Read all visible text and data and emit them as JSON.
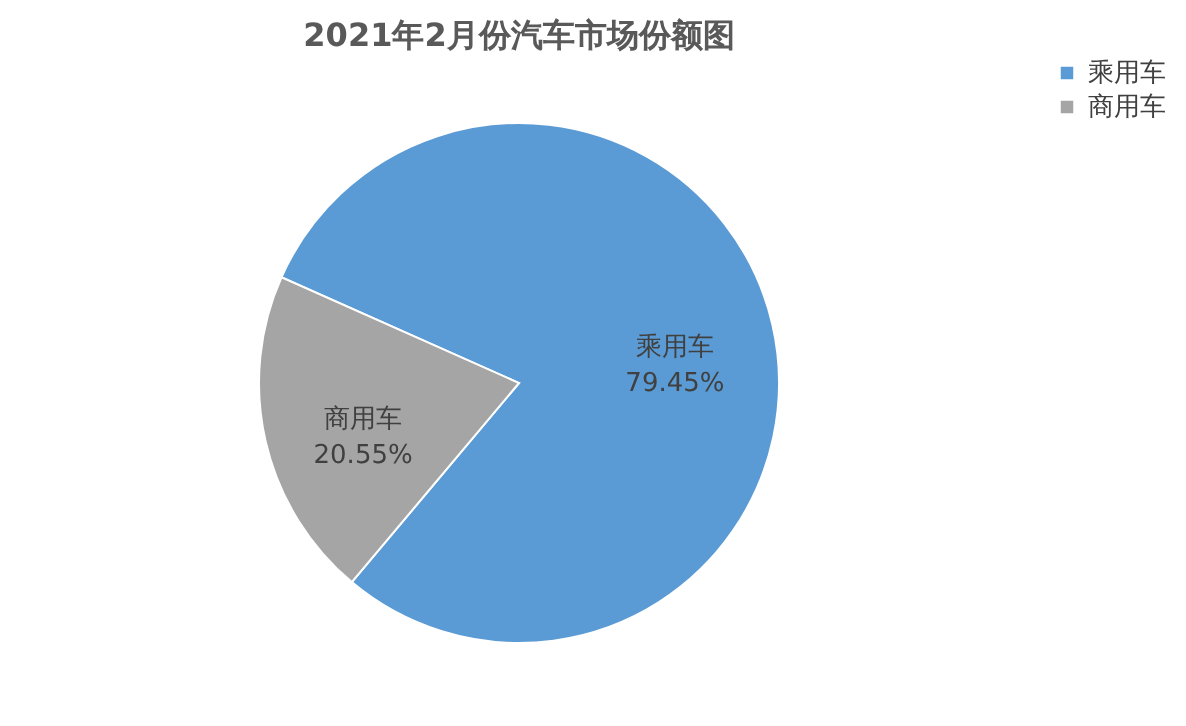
{
  "chart_data": {
    "type": "pie",
    "title": "2021年2月份汽车市场份额图",
    "categories": [
      "乘用车",
      "商用车"
    ],
    "values": [
      79.45,
      20.55
    ],
    "colors": [
      "#5b9bd5",
      "#a5a5a5"
    ],
    "value_labels": [
      "79.45%",
      "20.55%"
    ],
    "legend": "right"
  }
}
